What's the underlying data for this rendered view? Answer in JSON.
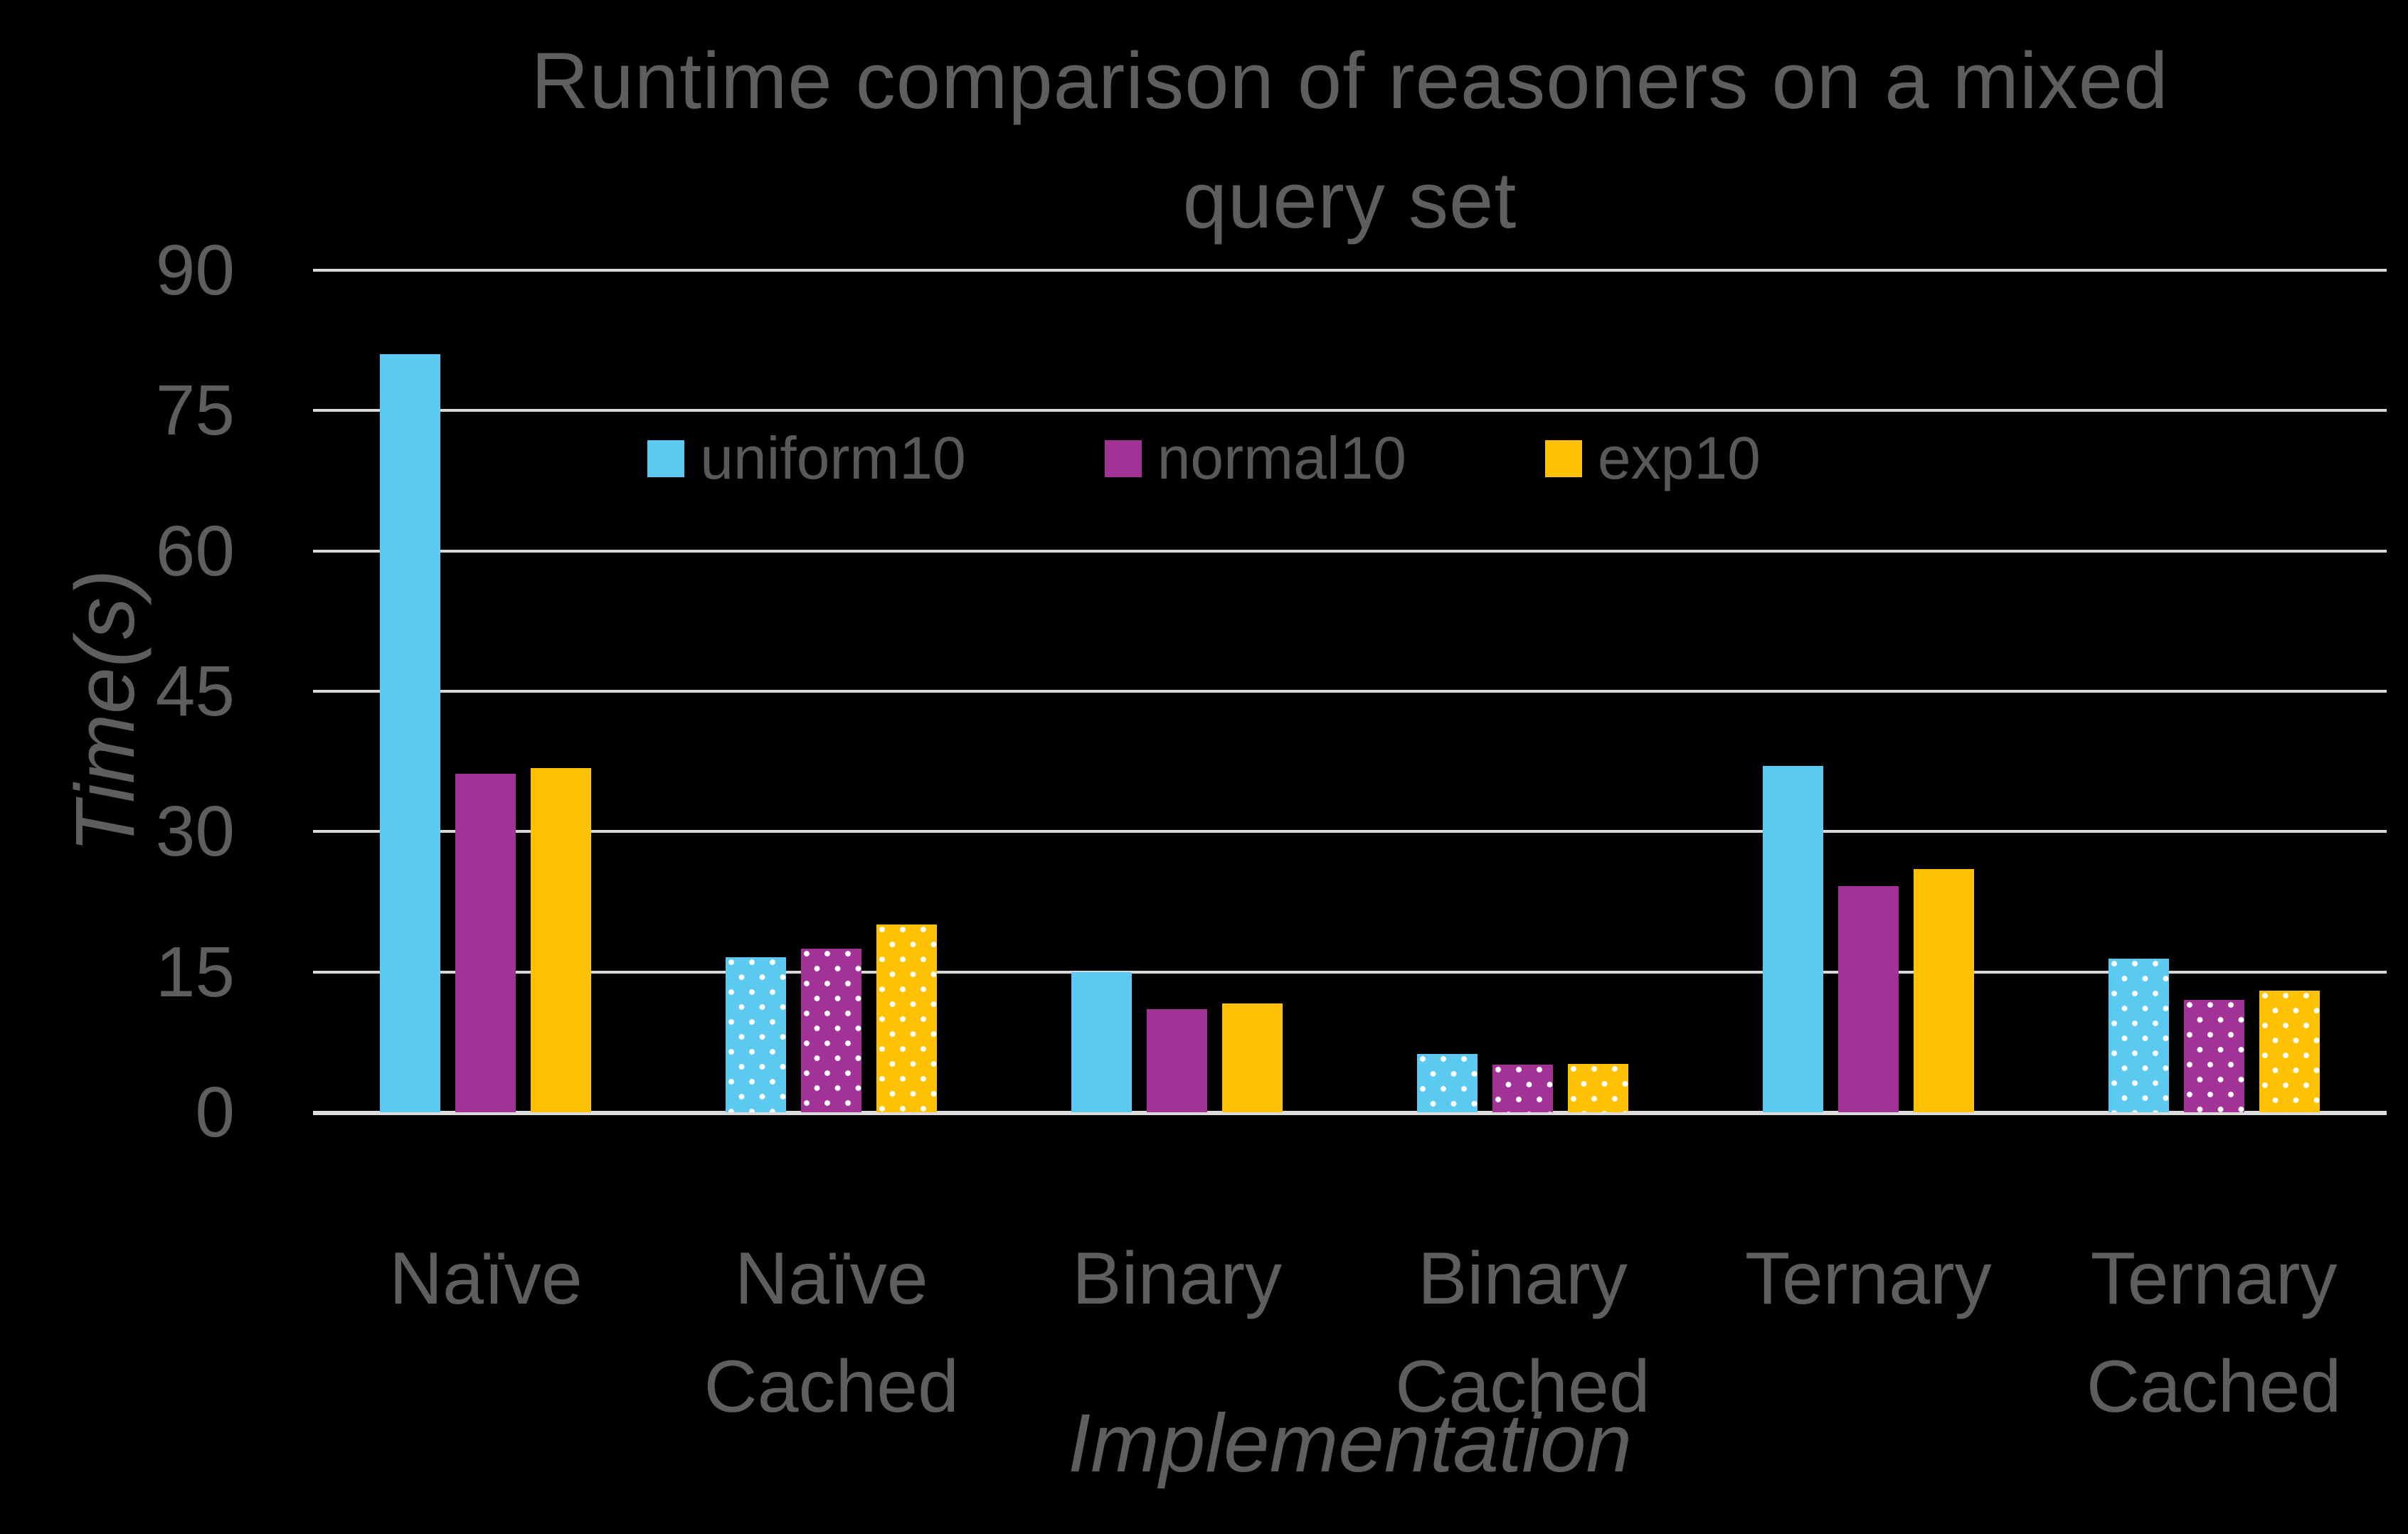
{
  "chart": {
    "background": "#000000",
    "text_color": "#5E5E5E",
    "gridline_color": "#D9D9D9",
    "title_line1": "Runtime comparison of reasoners on a mixed",
    "title_line2": "query set",
    "y_axis_title": "Time(s)",
    "x_axis_title": "Implementation"
  },
  "chart_data": {
    "type": "bar",
    "title": "Runtime comparison of reasoners on a mixed query set",
    "xlabel": "Implementation",
    "ylabel": "Time(s)",
    "ylim": [
      0,
      90
    ],
    "yticks": [
      0,
      15,
      30,
      45,
      60,
      75,
      90
    ],
    "grid": true,
    "legend_position": "top-center-inside",
    "categories": [
      "Naïve",
      "Naïve Cached",
      "Binary",
      "Binary Cached",
      "Ternary",
      "Ternary Cached"
    ],
    "dotted_pattern_categories": [
      "Naïve Cached",
      "Binary Cached",
      "Ternary Cached"
    ],
    "series": [
      {
        "name": "uniform10",
        "color": "#5BC9F0",
        "values": [
          81,
          16.6,
          15,
          6.2,
          37,
          16.4
        ]
      },
      {
        "name": "normal10",
        "color": "#A23296",
        "values": [
          36.2,
          17.5,
          11,
          5.1,
          24.2,
          12
        ]
      },
      {
        "name": "exp10",
        "color": "#FFC103",
        "values": [
          36.8,
          20.1,
          11.6,
          5.2,
          26,
          13
        ]
      }
    ]
  }
}
